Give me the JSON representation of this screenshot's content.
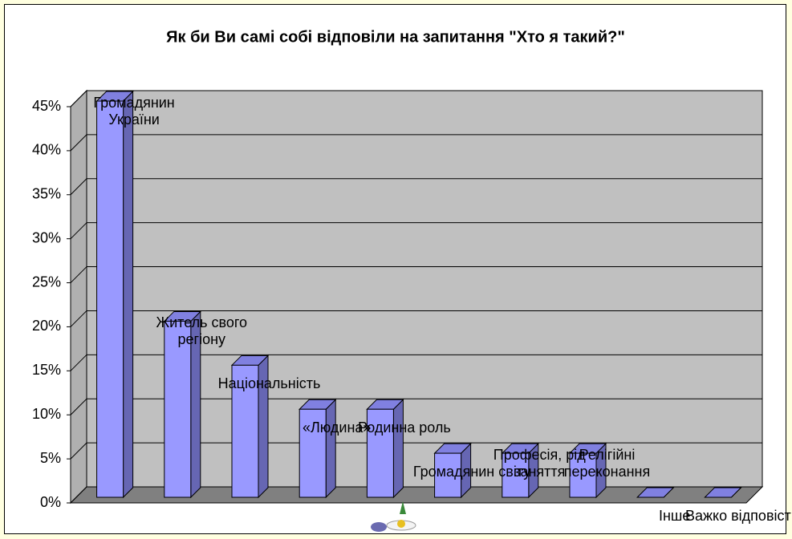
{
  "chart_data": {
    "type": "bar3d",
    "title": "Як би Ви самі собі відповіли на запитання \"Хто я такий?\"",
    "categories": [
      "Громадянин України",
      "Житель свого регіону",
      "Національність",
      "«Людина»",
      "Родинна роль",
      "Громадянин світу",
      "Професія, рід заняття",
      "Релігійні переконання",
      "Інше",
      "Важко відповісти"
    ],
    "values": [
      45,
      20,
      15,
      10,
      10,
      5,
      5,
      5,
      0,
      0
    ],
    "color": "#9999ff",
    "ylim": [
      0,
      45
    ],
    "yticks": [
      {
        "value": 0,
        "label": "0%"
      },
      {
        "value": 5,
        "label": "5%"
      },
      {
        "value": 10,
        "label": "10%"
      },
      {
        "value": 15,
        "label": "15%"
      },
      {
        "value": 20,
        "label": "20%"
      },
      {
        "value": 25,
        "label": "25%"
      },
      {
        "value": 30,
        "label": "30%"
      },
      {
        "value": 35,
        "label": "35%"
      },
      {
        "value": 40,
        "label": "40%"
      },
      {
        "value": 45,
        "label": "45%"
      }
    ],
    "grid": true
  }
}
